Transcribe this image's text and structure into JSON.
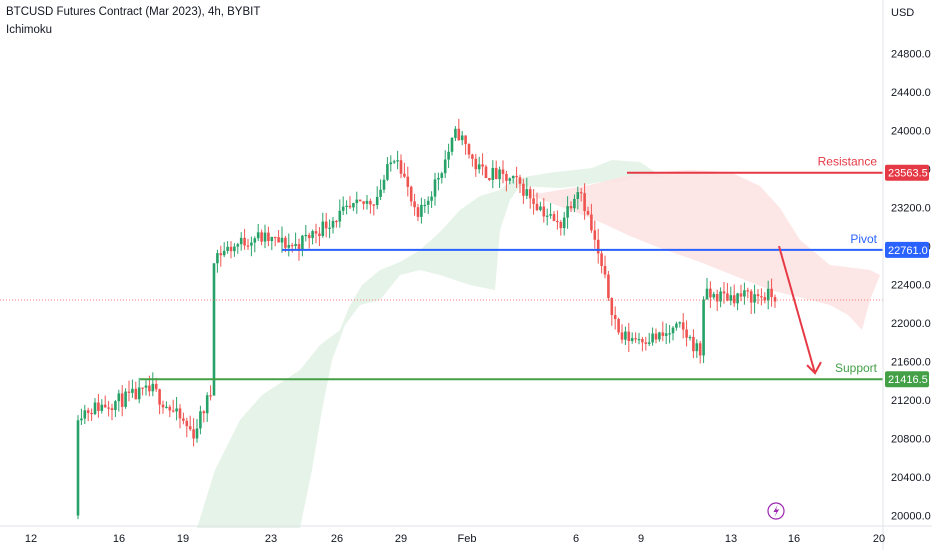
{
  "header": {
    "symbol_line": "BTCUSD Futures Contract (Mar 2023), 4h, BYBIT",
    "indicator": "Ichimoku"
  },
  "y_axis": {
    "currency": "USD",
    "ticks": [
      "24800.0",
      "24400.0",
      "24000.0",
      "23600.0",
      "23200.0",
      "22800.0",
      "22400.0",
      "22000.0",
      "21600.0",
      "21200.0",
      "20800.0",
      "20400.0",
      "20000.0"
    ]
  },
  "x_axis": {
    "ticks": [
      "12",
      "16",
      "19",
      "23",
      "26",
      "29",
      "Feb",
      "6",
      "9",
      "13",
      "16",
      "20"
    ]
  },
  "levels": {
    "resistance": {
      "label": "Resistance",
      "value": "23563.5",
      "color": "#e53a45"
    },
    "pivot": {
      "label": "Pivot",
      "value": "22761.0",
      "color": "#2962ff"
    },
    "support": {
      "label": "Support",
      "value": "21416.5",
      "color": "#43a047"
    }
  },
  "colors": {
    "up_candle": "#26a269",
    "down_candle": "#ef5350",
    "cloud_bull": "#e3f2e6",
    "cloud_bear": "#fde3e3",
    "arrow": "#e53a45",
    "last_price_line": "#ef5350"
  },
  "icons": {
    "lightning": "lightning-icon"
  },
  "chart_data": {
    "type": "candlestick",
    "title": "BTCUSD Futures Contract (Mar 2023), 4h, BYBIT",
    "ylabel": "USD",
    "ylim": [
      19960,
      25100
    ],
    "x": [
      "Jan 12",
      "Jan 16",
      "Jan 19",
      "Jan 23",
      "Jan 26",
      "Jan 29",
      "Feb 1",
      "Feb 6",
      "Feb 9",
      "Feb 13",
      "Feb 16",
      "Feb 20"
    ],
    "horizontal_levels": [
      {
        "name": "Resistance",
        "value": 23563.5
      },
      {
        "name": "Pivot",
        "value": 22761.0
      },
      {
        "name": "Support",
        "value": 21416.5
      }
    ],
    "projection": {
      "from": 22800,
      "to": 21480,
      "direction": "down"
    },
    "price_path": [
      {
        "x": "Jan 14",
        "close": 20000
      },
      {
        "x": "Jan 14",
        "close": 21050
      },
      {
        "x": "Jan 18",
        "close": 21300
      },
      {
        "x": "Jan 20",
        "close": 20850
      },
      {
        "x": "Jan 21",
        "close": 21350
      },
      {
        "x": "Jan 21",
        "close": 22700
      },
      {
        "x": "Jan 23",
        "close": 22900
      },
      {
        "x": "Jan 25",
        "close": 22800
      },
      {
        "x": "Jan 27",
        "close": 23100
      },
      {
        "x": "Jan 29",
        "close": 23300
      },
      {
        "x": "Jan 30",
        "close": 23800
      },
      {
        "x": "Jan 31",
        "close": 23050
      },
      {
        "x": "Feb 1",
        "close": 23500
      },
      {
        "x": "Feb 2",
        "close": 24000
      },
      {
        "x": "Feb 3",
        "close": 23600
      },
      {
        "x": "Feb 5",
        "close": 23450
      },
      {
        "x": "Feb 7",
        "close": 23000
      },
      {
        "x": "Feb 8",
        "close": 23450
      },
      {
        "x": "Feb 9",
        "close": 22650
      },
      {
        "x": "Feb 10",
        "close": 21850
      },
      {
        "x": "Feb 12",
        "close": 21850
      },
      {
        "x": "Feb 13",
        "close": 21950
      },
      {
        "x": "Feb 14",
        "close": 21680
      },
      {
        "x": "Feb 14",
        "close": 22280
      }
    ]
  }
}
